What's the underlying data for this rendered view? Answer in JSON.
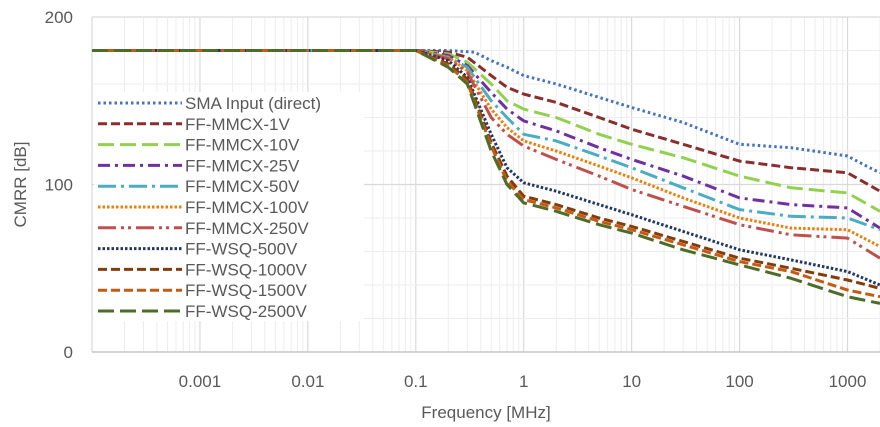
{
  "chart_data": {
    "type": "line",
    "title": "",
    "xlabel": "Frequency [MHz]",
    "ylabel": "CMRR [dB]",
    "x_scale": "log",
    "xlim": [
      0.0001,
      2000
    ],
    "ylim": [
      0,
      200
    ],
    "grid": true,
    "legend_position": "left",
    "x_tick_labels": [
      "0.001",
      "0.01",
      "0.1",
      "1",
      "10",
      "100",
      "1000"
    ],
    "x_tick_values": [
      0.001,
      0.01,
      0.1,
      1,
      10,
      100,
      1000
    ],
    "y_tick_labels": [
      "0",
      "100",
      "200"
    ],
    "y_tick_values": [
      0,
      100,
      200
    ],
    "series": [
      {
        "name": "SMA Input (direct)",
        "color": "#4472C4",
        "dash": "dot",
        "points": [
          [
            0.0001,
            180
          ],
          [
            0.1,
            180
          ],
          [
            0.2,
            180
          ],
          [
            0.35,
            179
          ],
          [
            0.5,
            174
          ],
          [
            0.7,
            170
          ],
          [
            1,
            165
          ],
          [
            2,
            160
          ],
          [
            5,
            152
          ],
          [
            10,
            146
          ],
          [
            30,
            137
          ],
          [
            100,
            124
          ],
          [
            300,
            122
          ],
          [
            1000,
            117
          ],
          [
            1500,
            111
          ],
          [
            2000,
            107
          ]
        ]
      },
      {
        "name": "FF-MMCX-1V",
        "color": "#8B2E2E",
        "dash": "dash",
        "points": [
          [
            0.0001,
            180
          ],
          [
            0.1,
            180
          ],
          [
            0.2,
            179
          ],
          [
            0.3,
            176
          ],
          [
            0.5,
            165
          ],
          [
            0.7,
            158
          ],
          [
            1,
            154
          ],
          [
            2,
            149
          ],
          [
            5,
            140
          ],
          [
            10,
            133
          ],
          [
            30,
            124
          ],
          [
            100,
            114
          ],
          [
            300,
            110
          ],
          [
            1000,
            107
          ],
          [
            2000,
            96
          ]
        ]
      },
      {
        "name": "FF-MMCX-10V",
        "color": "#92D050",
        "dash": "longdash",
        "points": [
          [
            0.0001,
            180
          ],
          [
            0.1,
            180
          ],
          [
            0.2,
            178
          ],
          [
            0.3,
            173
          ],
          [
            0.5,
            160
          ],
          [
            0.7,
            150
          ],
          [
            1,
            145
          ],
          [
            2,
            140
          ],
          [
            5,
            130
          ],
          [
            10,
            124
          ],
          [
            30,
            116
          ],
          [
            100,
            105
          ],
          [
            300,
            98
          ],
          [
            1000,
            95
          ],
          [
            2000,
            84
          ]
        ]
      },
      {
        "name": "FF-MMCX-25V",
        "color": "#7030A0",
        "dash": "dashdot",
        "points": [
          [
            0.0001,
            180
          ],
          [
            0.1,
            180
          ],
          [
            0.2,
            177
          ],
          [
            0.3,
            171
          ],
          [
            0.5,
            155
          ],
          [
            0.7,
            145
          ],
          [
            1,
            138
          ],
          [
            2,
            132
          ],
          [
            5,
            122
          ],
          [
            10,
            115
          ],
          [
            30,
            105
          ],
          [
            100,
            92
          ],
          [
            300,
            88
          ],
          [
            1000,
            86
          ],
          [
            2000,
            74
          ]
        ]
      },
      {
        "name": "FF-MMCX-50V",
        "color": "#4BACC6",
        "dash": "longdashdot",
        "points": [
          [
            0.0001,
            180
          ],
          [
            0.1,
            180
          ],
          [
            0.2,
            176
          ],
          [
            0.3,
            170
          ],
          [
            0.5,
            150
          ],
          [
            0.7,
            140
          ],
          [
            1,
            130
          ],
          [
            2,
            126
          ],
          [
            5,
            117
          ],
          [
            10,
            110
          ],
          [
            30,
            98
          ],
          [
            100,
            85
          ],
          [
            300,
            81
          ],
          [
            1000,
            80
          ],
          [
            2000,
            73
          ]
        ]
      },
      {
        "name": "FF-MMCX-100V",
        "color": "#F07F09",
        "dash": "sqdot",
        "points": [
          [
            0.0001,
            180
          ],
          [
            0.1,
            180
          ],
          [
            0.2,
            176
          ],
          [
            0.3,
            168
          ],
          [
            0.5,
            145
          ],
          [
            0.7,
            134
          ],
          [
            1,
            126
          ],
          [
            2,
            120
          ],
          [
            5,
            111
          ],
          [
            10,
            104
          ],
          [
            30,
            92
          ],
          [
            100,
            80
          ],
          [
            300,
            74
          ],
          [
            1000,
            73
          ],
          [
            2000,
            63
          ]
        ]
      },
      {
        "name": "FF-MMCX-250V",
        "color": "#C0504D",
        "dash": "longdashdotdot",
        "points": [
          [
            0.0001,
            180
          ],
          [
            0.1,
            180
          ],
          [
            0.2,
            175
          ],
          [
            0.3,
            167
          ],
          [
            0.5,
            140
          ],
          [
            0.7,
            130
          ],
          [
            1,
            123
          ],
          [
            2,
            115
          ],
          [
            5,
            105
          ],
          [
            10,
            97
          ],
          [
            30,
            87
          ],
          [
            100,
            76
          ],
          [
            300,
            70
          ],
          [
            1000,
            68
          ],
          [
            2000,
            56
          ]
        ]
      },
      {
        "name": "FF-WSQ-500V",
        "color": "#1F3864",
        "dash": "sqdot",
        "points": [
          [
            0.0001,
            180
          ],
          [
            0.1,
            180
          ],
          [
            0.2,
            174
          ],
          [
            0.3,
            164
          ],
          [
            0.5,
            130
          ],
          [
            0.7,
            110
          ],
          [
            1,
            101
          ],
          [
            2,
            96
          ],
          [
            5,
            88
          ],
          [
            10,
            82
          ],
          [
            30,
            72
          ],
          [
            100,
            61
          ],
          [
            300,
            55
          ],
          [
            1000,
            48
          ],
          [
            2000,
            40
          ]
        ]
      },
      {
        "name": "FF-WSQ-1000V",
        "color": "#833C0B",
        "dash": "dash",
        "points": [
          [
            0.0001,
            180
          ],
          [
            0.1,
            180
          ],
          [
            0.2,
            172
          ],
          [
            0.3,
            163
          ],
          [
            0.5,
            125
          ],
          [
            0.7,
            105
          ],
          [
            1,
            93
          ],
          [
            2,
            88
          ],
          [
            5,
            80
          ],
          [
            10,
            75
          ],
          [
            30,
            66
          ],
          [
            100,
            56
          ],
          [
            300,
            50
          ],
          [
            1000,
            43
          ],
          [
            2000,
            38
          ]
        ]
      },
      {
        "name": "FF-WSQ-1500V",
        "color": "#C55A11",
        "dash": "dash",
        "points": [
          [
            0.0001,
            180
          ],
          [
            0.1,
            180
          ],
          [
            0.2,
            171
          ],
          [
            0.3,
            161
          ],
          [
            0.5,
            123
          ],
          [
            0.7,
            102
          ],
          [
            1,
            91
          ],
          [
            2,
            86
          ],
          [
            5,
            78
          ],
          [
            10,
            73
          ],
          [
            30,
            64
          ],
          [
            100,
            54
          ],
          [
            300,
            48
          ],
          [
            1000,
            37
          ],
          [
            2000,
            33
          ]
        ]
      },
      {
        "name": "FF-WSQ-2500V",
        "color": "#4E6B2A",
        "dash": "longdash",
        "points": [
          [
            0.0001,
            180
          ],
          [
            0.1,
            180
          ],
          [
            0.2,
            170
          ],
          [
            0.3,
            160
          ],
          [
            0.5,
            120
          ],
          [
            0.7,
            100
          ],
          [
            1,
            89
          ],
          [
            2,
            84
          ],
          [
            5,
            76
          ],
          [
            10,
            71
          ],
          [
            30,
            61
          ],
          [
            100,
            52
          ],
          [
            300,
            44
          ],
          [
            1000,
            33
          ],
          [
            2000,
            29
          ]
        ]
      }
    ]
  }
}
